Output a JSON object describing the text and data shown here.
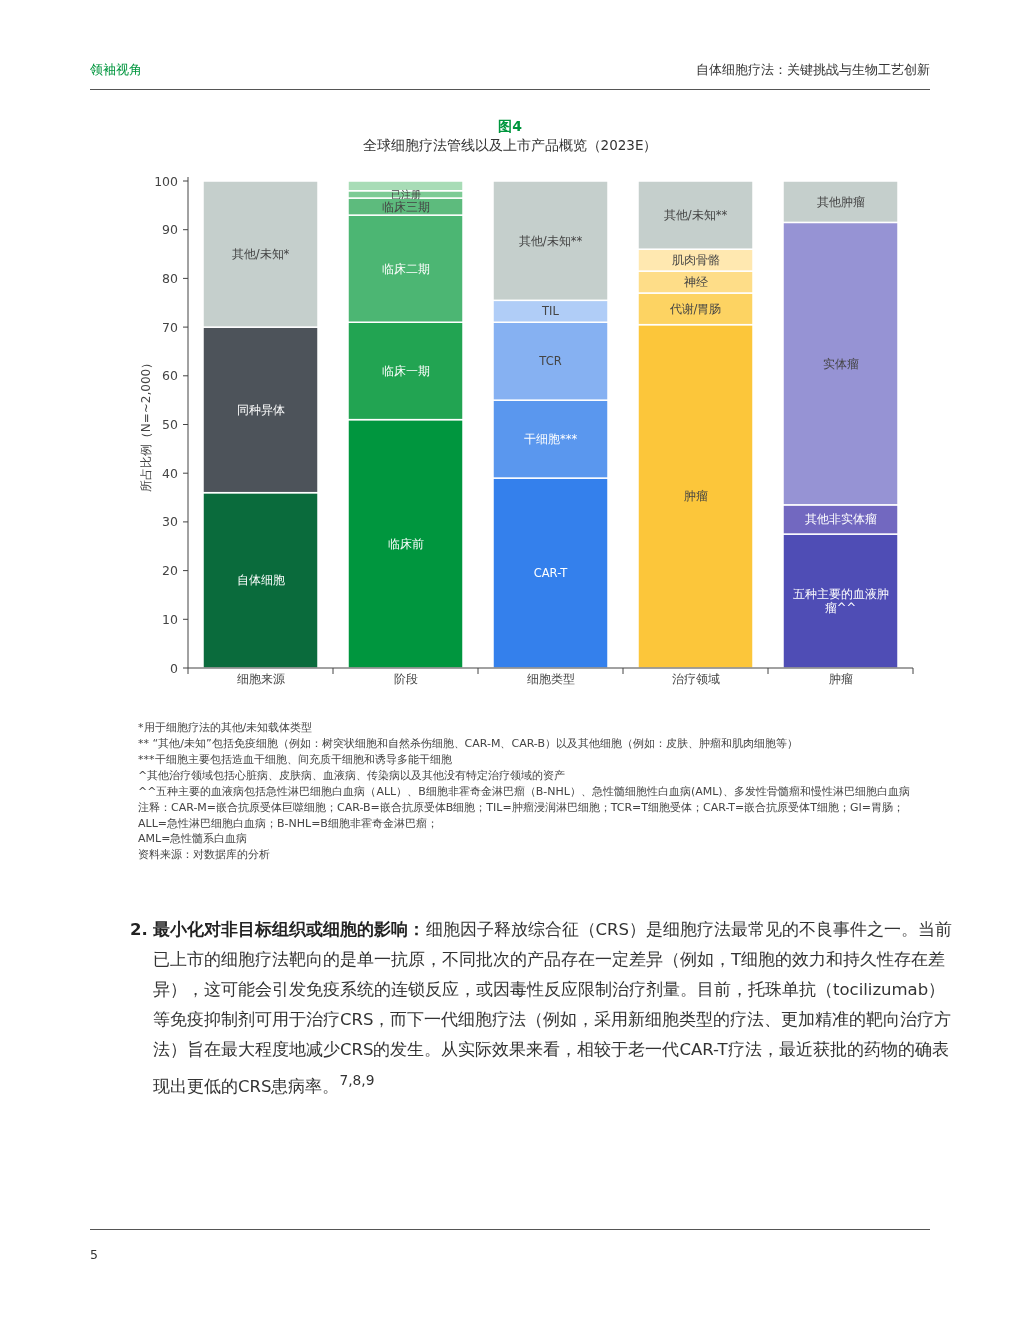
{
  "chart_data": {
    "type": "bar",
    "stacked": true,
    "title": "图4",
    "subtitle": "全球细胞疗法管线以及上市产品概览（2023E）",
    "ylabel": "所占比例（N=~2,000）",
    "categories": [
      "细胞来源",
      "阶段",
      "细胞类型",
      "治疗领域",
      "肿瘤"
    ],
    "ylim": [
      0,
      100
    ],
    "yticks": [
      0,
      10,
      20,
      30,
      40,
      50,
      60,
      70,
      80,
      90,
      100
    ],
    "series": [
      {
        "name": "自体细胞",
        "color": "#0a6b3c",
        "values": [
          36,
          null,
          null,
          null,
          null
        ]
      },
      {
        "name": "同种异体",
        "color": "#4d535a",
        "values": [
          34,
          null,
          null,
          null,
          null
        ]
      },
      {
        "name": "其他/未知*",
        "color": "#c5cfcc",
        "values": [
          30,
          null,
          null,
          null,
          null
        ]
      },
      {
        "name": "临床前",
        "color": "#00963e",
        "values": [
          null,
          51,
          null,
          null,
          null
        ]
      },
      {
        "name": "临床一期",
        "color": "#22a452",
        "values": [
          null,
          20,
          null,
          null,
          null
        ]
      },
      {
        "name": "临床二期",
        "color": "#4cb673",
        "values": [
          null,
          22,
          null,
          null,
          null
        ]
      },
      {
        "name": "临床三期",
        "color": "#5dbb7d",
        "values": [
          null,
          3.5,
          null,
          null,
          null
        ]
      },
      {
        "name": "已注册",
        "color": "#7dcb95",
        "values": [
          null,
          1.5,
          null,
          null,
          null
        ]
      },
      {
        "color": "#a8dcb6",
        "values": [
          null,
          2,
          null,
          null,
          null
        ]
      },
      {
        "name": "CAR-T",
        "color": "#3480ec",
        "values": [
          null,
          null,
          39,
          null,
          null
        ]
      },
      {
        "name": "干细胞***",
        "color": "#5a97ee",
        "values": [
          null,
          null,
          16,
          null,
          null
        ]
      },
      {
        "name": "TCR",
        "color": "#86b1f2",
        "values": [
          null,
          null,
          16,
          null,
          null
        ]
      },
      {
        "name": "TIL",
        "color": "#b0cdf7",
        "values": [
          null,
          null,
          4.5,
          null,
          null
        ]
      },
      {
        "name": "其他/未知**",
        "color": "#c5cfcc",
        "values": [
          null,
          null,
          24.5,
          null,
          null
        ]
      },
      {
        "name": "肿瘤",
        "color": "#fcc63a",
        "values": [
          null,
          null,
          null,
          70.5,
          null
        ]
      },
      {
        "name": "代谢/胃肠",
        "color": "#fdd362",
        "values": [
          null,
          null,
          null,
          6.5,
          null
        ]
      },
      {
        "name": "神经",
        "color": "#fedd88",
        "values": [
          null,
          null,
          null,
          4.5,
          null
        ]
      },
      {
        "name": "肌肉骨骼",
        "color": "#ffe8b0",
        "values": [
          null,
          null,
          null,
          4.5,
          null
        ]
      },
      {
        "name": "其他/未知**",
        "color": "#c5cfcc",
        "values": [
          null,
          null,
          null,
          14,
          null
        ]
      },
      {
        "name": "五种主要的血液肿瘤^^",
        "color": "#4f4db5",
        "values": [
          null,
          null,
          null,
          null,
          27.5
        ]
      },
      {
        "name": "其他非实体瘤",
        "color": "#7268c0",
        "values": [
          null,
          null,
          null,
          null,
          6
        ]
      },
      {
        "name": "实体瘤",
        "color": "#9693d4",
        "values": [
          null,
          null,
          null,
          null,
          58
        ]
      },
      {
        "name": "其他肿瘤",
        "color": "#c5cfcc",
        "values": [
          null,
          null,
          null,
          null,
          8.5
        ]
      }
    ],
    "annotations": [
      "领袖视角",
      "自体细胞疗法：关键挑战与生物工艺创新",
      "*用于细胞疗法的其他/未知载体类型",
      "** “其他/未知”包括免疫细胞（例如：树突状细胞和自然杀伤细胞、CAR-M、CAR-B）以及其他细胞（例如：皮肤、肿瘤和肌肉细胞等）",
      "***干细胞主要包括造血干细胞、间充质干细胞和诱导多能干细胞",
      "^其他治疗领域包括心脏病、皮肤病、血液病、传染病以及其他没有特定治疗领域的资产",
      "^^五种主要的血液病包括急性淋巴细胞白血病（ALL）、B细胞非霍奇金淋巴瘤（B-NHL）、急性髓细胞性白血病(AML)、多发性骨髓瘤和慢性淋巴细胞白血病",
      "注释：CAR-M=嵌合抗原受体巨噬细胞；CAR-B=嵌合抗原受体B细胞；TIL=肿瘤浸润淋巴细胞；TCR=T细胞受体；CAR-T=嵌合抗原受体T细胞；GI=胃肠；ALL=急性淋巴细胞白血病；B-NHL=B细胞非霍奇金淋巴瘤；",
      "AML=急性髓系白血病",
      "资料来源：对数据库的分析",
      "**2. 最小化对非目标组织或细胞的影响：**细胞因子释放综合征（CRS）是细胞疗法最常见的不良事件之一。当前已上市的细胞疗法靶向的是单一抗原，不同批次的产品存在一定差异（例如，T细胞的效力和持久性存在差异），这可能会引发免疫系统的连锁反应，或因毒性反应限制治疗剂量。目前，托珠单抗（tocilizumab）等免疫抑制剂可用于治疗CRS，而下一代细胞疗法（例如，采用新细胞类型的疗法、更加精准的靶向治疗方法）旨在最大程度地减少CRS的发生。从实际效果来看，相较于老一代CAR-T疗法，最近获批的药物的确表现出更低的CRS患病率。$^{7,8,9}$",
      "5"
    ]
  }
}
